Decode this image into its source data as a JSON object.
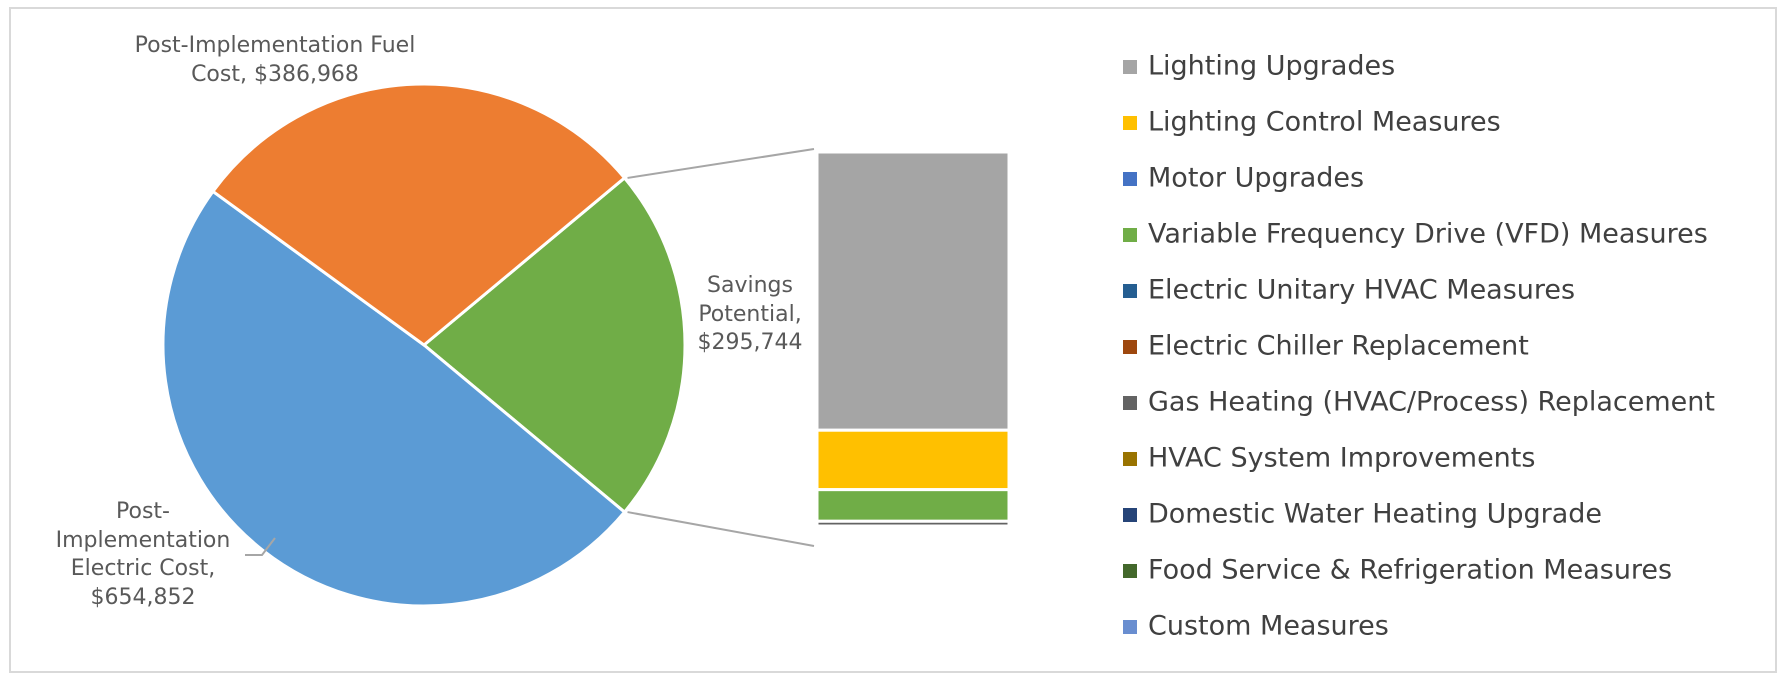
{
  "chart_data": [
    {
      "type": "pie",
      "value_labels": [
        "Savings Potential, $295,744",
        "Post-Implementation Electric Cost, $654,852",
        "Post-Implementation Fuel Cost, $386,968"
      ],
      "values": [
        295744,
        654852,
        386968
      ],
      "colors": [
        "#70ad47",
        "#5b9bd5",
        "#ed7d31"
      ]
    },
    {
      "type": "bar",
      "stacked": true,
      "series": [
        {
          "name": "Lighting Upgrades",
          "color": "#a5a5a5",
          "values": [
            220000
          ]
        },
        {
          "name": "Lighting Control Measures",
          "color": "#ffc000",
          "values": [
            47000
          ]
        },
        {
          "name": "Motor Upgrades",
          "color": "#4472c4",
          "values": [
            0
          ]
        },
        {
          "name": "Variable Frequency Drive (VFD) Measures",
          "color": "#70ad47",
          "values": [
            25000
          ]
        },
        {
          "name": "Electric Unitary HVAC Measures",
          "color": "#255e91",
          "values": [
            0
          ]
        },
        {
          "name": "Electric Chiller Replacement",
          "color": "#9e480e",
          "values": [
            0
          ]
        },
        {
          "name": "Gas Heating (HVAC/Process) Replacement",
          "color": "#636363",
          "values": [
            3744
          ]
        },
        {
          "name": "HVAC System Improvements",
          "color": "#997300",
          "values": [
            0
          ]
        },
        {
          "name": "Domestic Water Heating Upgrade",
          "color": "#264478",
          "values": [
            0
          ]
        },
        {
          "name": "Food Service & Refrigeration Measures",
          "color": "#43682b",
          "values": [
            0
          ]
        },
        {
          "name": "Custom Measures",
          "color": "#698ed0",
          "values": [
            0
          ]
        }
      ],
      "legend": "right"
    }
  ]
}
